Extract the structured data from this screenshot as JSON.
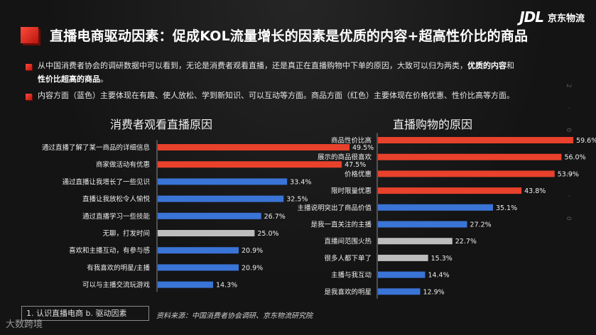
{
  "brand": {
    "mark": "JDL",
    "name": "京东物流"
  },
  "title": "直播电商驱动因素：促成KOL流量增长的因素是优质的内容+超高性价比的商品",
  "bullets": [
    {
      "line1": "从中国消费者协会的调研数据中可以看到，无论是消费者观看直播，还是真正在直播购物中下单的原因，大致可以归为两类，",
      "line1_bold": "优质的内容",
      "line1_end": "和",
      "line2_bold": "性价比超高的商品",
      "line2_end": "。"
    },
    {
      "text": "内容方面（蓝色）主要体现在有趣、使人放松、学到新知识、可以互动等方面。商品方面（红色）主要体现在价格优惠、性价比高等方面。"
    }
  ],
  "vertical_text": "2 · 0 · 2 · 0",
  "colors": {
    "red": "#e8412c",
    "blue": "#3a74d6",
    "gray": "#bdbdbd",
    "accent_label": "#e9e9e9"
  },
  "chart_data": [
    {
      "type": "bar",
      "orientation": "horizontal",
      "title": "消费者观看直播原因",
      "xlim": [
        0,
        55
      ],
      "categories": [
        "通过直播了解了某一商品的详细信息",
        "商家做活动有优惠",
        "通过直播让我增长了一些见识",
        "直播让我放松令人愉悦",
        "通过直播学习一些技能",
        "无聊，打发时间",
        "喜欢和主播互动，有参与感",
        "有我喜欢的明星/主播",
        "可以与主播交流玩游戏"
      ],
      "values": [
        49.5,
        47.5,
        33.4,
        32.5,
        26.7,
        25.0,
        20.9,
        20.9,
        14.3
      ],
      "value_labels": [
        "49.5%",
        "47.5%",
        "33.4%",
        "32.5%",
        "26.7%",
        "25.0%",
        "20.9%",
        "20.9%",
        "14.3%"
      ],
      "bar_colors": [
        "red",
        "red",
        "blue",
        "blue",
        "blue",
        "gray",
        "blue",
        "blue",
        "blue"
      ]
    },
    {
      "type": "bar",
      "orientation": "horizontal",
      "title": "直播购物的原因",
      "xlim": [
        0,
        65
      ],
      "categories": [
        "商品性价比高",
        "展示的商品很喜欢",
        "价格优惠",
        "限时限量优惠",
        "主播说明突出了商品价值",
        "是我一直关注的主播",
        "直播间范围火热",
        "很多人都下单了",
        "主播与我互动",
        "是我喜欢的明星"
      ],
      "values": [
        59.6,
        56.0,
        53.9,
        43.8,
        35.1,
        27.2,
        22.7,
        15.3,
        14.4,
        12.9
      ],
      "value_labels": [
        "59.6%",
        "56.0%",
        "53.9%",
        "43.8%",
        "35.1%",
        "27.2%",
        "22.7%",
        "15.3%",
        "14.4%",
        "12.9%"
      ],
      "bar_colors": [
        "red",
        "red",
        "red",
        "red",
        "blue",
        "blue",
        "gray",
        "gray",
        "blue",
        "blue"
      ]
    }
  ],
  "footer": {
    "nav": "1. 认识直播电商   b. 驱动因素",
    "source": "资料来源：中国消费者协会调研、京东物流研究院"
  },
  "watermark": "大数跨境"
}
